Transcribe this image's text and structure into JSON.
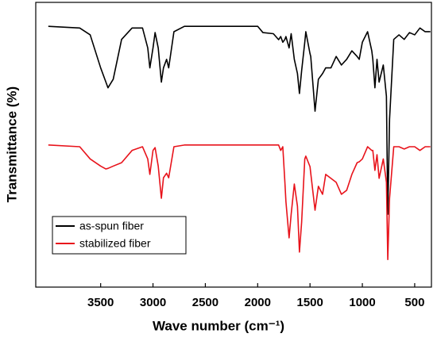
{
  "chart_data": {
    "type": "line",
    "xlabel": "Wave number (cm⁻¹)",
    "ylabel": "Transmittance (%)",
    "x": [
      4000,
      3700,
      3600,
      3500,
      3450,
      3430,
      3380,
      3300,
      3200,
      3100,
      3050,
      3030,
      3000,
      2980,
      2950,
      2920,
      2900,
      2870,
      2850,
      2800,
      2700,
      2000,
      1950,
      1850,
      1800,
      1780,
      1760,
      1740,
      1730,
      1700,
      1680,
      1650,
      1620,
      1601,
      1580,
      1550,
      1540,
      1500,
      1493,
      1452,
      1420,
      1380,
      1350,
      1300,
      1250,
      1200,
      1150,
      1100,
      1050,
      1030,
      1000,
      950,
      910,
      900,
      880,
      860,
      840,
      800,
      770,
      757,
      740,
      700,
      650,
      600,
      550,
      500,
      450,
      400,
      350
    ],
    "series": [
      {
        "name": "as-spun fiber",
        "color": "#000000",
        "values": [
          91.6,
          91,
          88.6,
          77,
          72,
          70,
          73,
          87,
          91,
          91,
          84,
          77,
          84,
          89.4,
          84,
          72,
          77,
          80,
          77,
          89.7,
          91.6,
          91.6,
          89.4,
          89,
          86.9,
          88,
          86,
          87,
          88,
          84,
          89,
          80,
          75,
          68,
          76,
          86,
          89.7,
          82,
          81,
          61.8,
          73,
          75,
          77,
          77,
          81,
          78,
          80,
          83,
          81,
          80,
          86,
          89.7,
          83,
          80,
          70,
          80,
          72,
          78,
          67,
          25.6,
          59,
          87,
          88.6,
          87,
          89.4,
          88.6,
          91,
          89.7,
          89.7
        ]
      },
      {
        "name": "stabilized fiber",
        "color": "#e8131b",
        "values": [
          49.9,
          49.3,
          45,
          42.5,
          41.5,
          41.7,
          42.5,
          43.7,
          48,
          49.3,
          45,
          39.6,
          48,
          49,
          42.5,
          31.2,
          38.4,
          40,
          38.4,
          49.3,
          49.9,
          49.9,
          49.9,
          49.9,
          49.9,
          48,
          49.3,
          36.8,
          30,
          17.3,
          25.6,
          36.2,
          28.4,
          12.3,
          22.8,
          45,
          46,
          42.3,
          40,
          27,
          35.4,
          32.6,
          39.6,
          38.2,
          36.8,
          32.6,
          34,
          39.6,
          43.7,
          44,
          45,
          49.3,
          48,
          48,
          41,
          46.5,
          38.2,
          45,
          36.8,
          9.7,
          31.2,
          49.3,
          49.3,
          48.5,
          49.3,
          49.3,
          48,
          49.3,
          49.3
        ]
      }
    ],
    "xlim": [
      4120,
      340
    ],
    "xticks": [
      3500,
      3000,
      2500,
      2000,
      1500,
      1000,
      500
    ],
    "ylim": [
      0,
      100
    ],
    "legend": "lower left"
  }
}
